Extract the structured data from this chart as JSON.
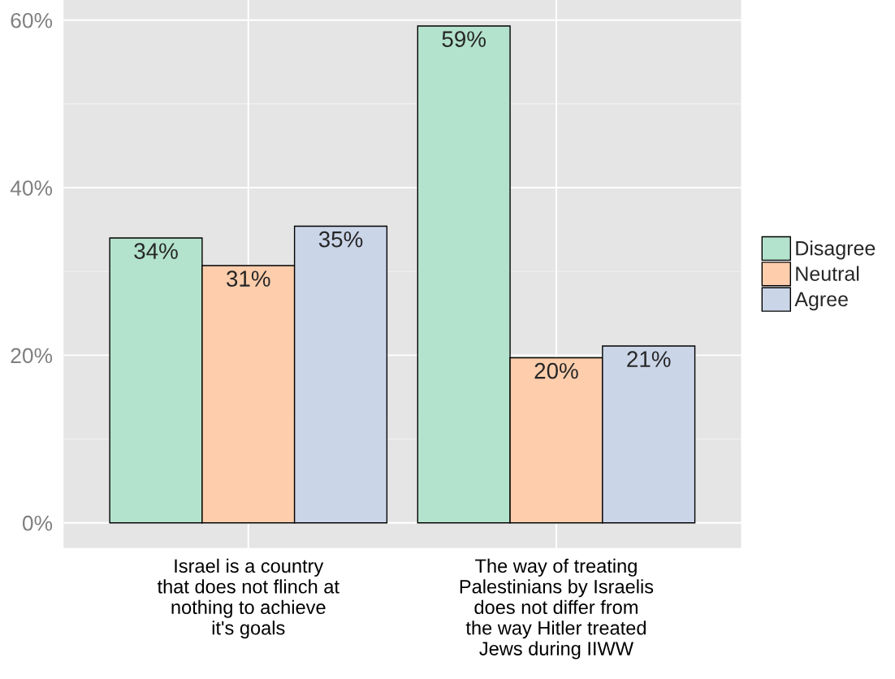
{
  "chart_data": {
    "type": "bar",
    "categories": [
      "Israel is a country\nthat does not flinch at\nnothing to achieve\nit's goals",
      "The way of treating\nPalestinians by Israelis\ndoes not differ from\nthe way Hitler treated\nJews during IIWW"
    ],
    "series": [
      {
        "name": "Disagree",
        "color": "#b3e2cd",
        "values": [
          34.0,
          59.3
        ],
        "value_labels": [
          "34%",
          "59%"
        ]
      },
      {
        "name": "Neutral",
        "color": "#fdcdac",
        "values": [
          30.7,
          19.7
        ],
        "value_labels": [
          "31%",
          "20%"
        ]
      },
      {
        "name": "Agree",
        "color": "#cbd5e8",
        "values": [
          35.4,
          21.1
        ],
        "value_labels": [
          "35%",
          "21%"
        ]
      }
    ],
    "ylim": [
      -3,
      62.4
    ],
    "yticks": [
      {
        "value": 0,
        "label": "0%"
      },
      {
        "value": 20,
        "label": "20%"
      },
      {
        "value": 40,
        "label": "40%"
      },
      {
        "value": 60,
        "label": "60%"
      }
    ],
    "grid": true,
    "legend": "right"
  }
}
